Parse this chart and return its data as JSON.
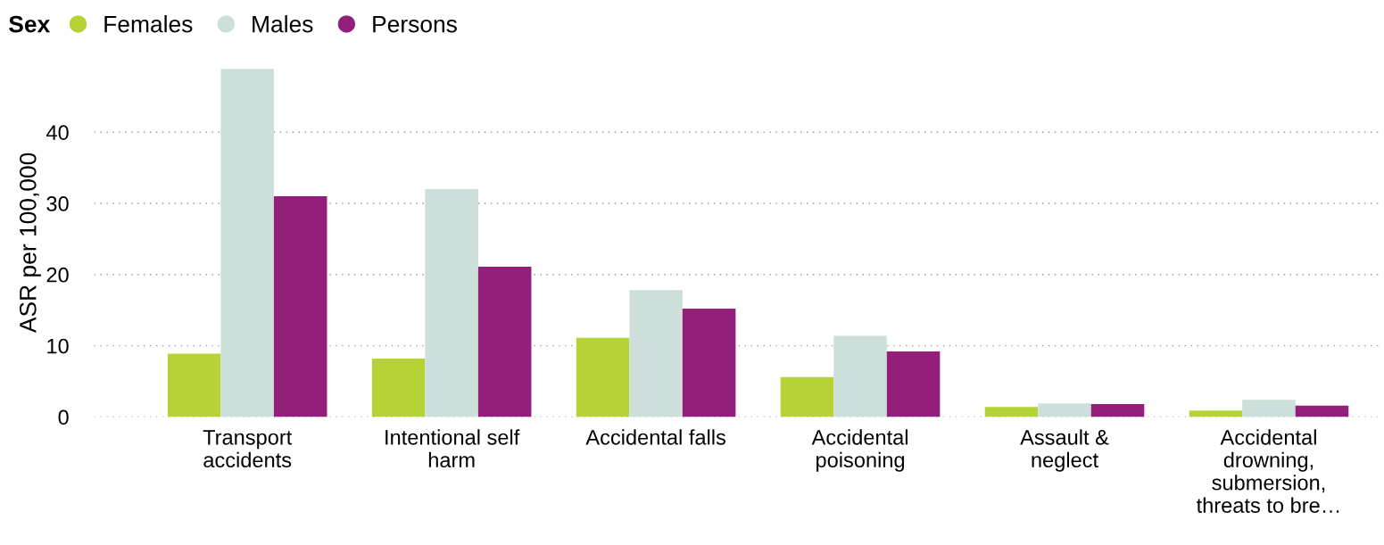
{
  "chart_data": {
    "type": "bar",
    "ylabel": "ASR per 100,000",
    "legend_title": "Sex",
    "categories": [
      "Transport\naccidents",
      "Intentional self\nharm",
      "Accidental falls",
      "Accidental\npoisoning",
      "Assault &\nneglect",
      "Accidental\ndrowning,\nsubmersion,\nthreats to bre…"
    ],
    "series": [
      {
        "name": "Females",
        "color": "#b5d334",
        "values": [
          8.9,
          8.2,
          11.1,
          5.6,
          1.4,
          0.9
        ]
      },
      {
        "name": "Males",
        "color": "#cddfda",
        "values": [
          48.9,
          32.0,
          17.8,
          11.4,
          1.9,
          2.4
        ]
      },
      {
        "name": "Persons",
        "color": "#931f7b",
        "values": [
          31.0,
          21.1,
          15.2,
          9.2,
          1.8,
          1.6
        ]
      }
    ],
    "ylim": [
      0,
      49
    ],
    "yticks": [
      0,
      10,
      20,
      30,
      40
    ],
    "grid": "y",
    "legend": "top left"
  }
}
